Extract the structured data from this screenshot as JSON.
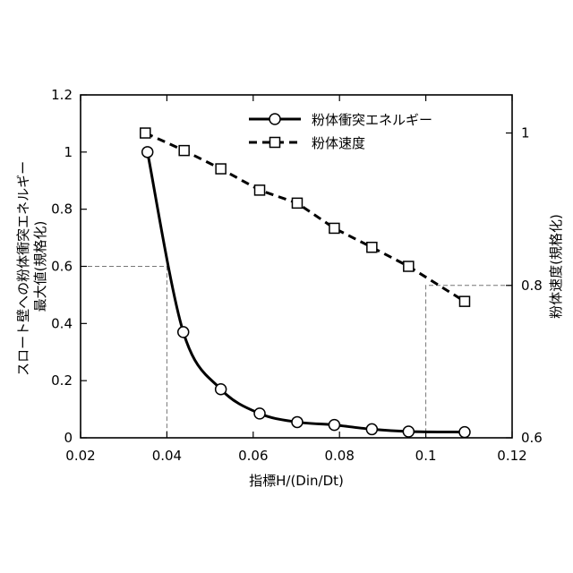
{
  "chart_data": {
    "type": "line",
    "xlabel": "指標H/(Din/Dt)",
    "ylabel_left_lines": [
      "スロート壁への粉体衝突エネルギー",
      "最大値(規格化)"
    ],
    "ylabel_right": "粉体速度(規格化)",
    "xlim": [
      0.02,
      0.12
    ],
    "ylim_left": [
      0,
      1.2
    ],
    "ylim_right": [
      0.6,
      1.05
    ],
    "x_ticks": [
      "0.02",
      "0.04",
      "0.06",
      "0.08",
      "0.1",
      "0.12"
    ],
    "y_ticks_left": [
      "0",
      "0.2",
      "0.4",
      "0.6",
      "0.8",
      "1",
      "1.2"
    ],
    "y_ticks_right": [
      "0.6",
      "0.8",
      "1"
    ],
    "grid": false,
    "legend_position": "top-right",
    "series": [
      {
        "name": "粉体衝突エネルギー",
        "axis": "left",
        "style": "solid",
        "marker": "circle",
        "x": [
          0.0355,
          0.0438,
          0.0525,
          0.0615,
          0.0702,
          0.0788,
          0.0875,
          0.096,
          0.109
        ],
        "y": [
          1.0,
          0.37,
          0.17,
          0.085,
          0.055,
          0.045,
          0.03,
          0.022,
          0.02
        ]
      },
      {
        "name": "粉体速度",
        "axis": "right",
        "style": "dashed",
        "marker": "square",
        "x": [
          0.035,
          0.044,
          0.0525,
          0.0615,
          0.0702,
          0.0788,
          0.0875,
          0.096,
          0.109
        ],
        "y": [
          1.0,
          0.977,
          0.953,
          0.925,
          0.908,
          0.875,
          0.85,
          0.825,
          0.779
        ]
      }
    ],
    "reference_lines": [
      {
        "axis": "left",
        "x": 0.04,
        "y": 0.6
      },
      {
        "axis": "right",
        "x": 0.1,
        "y": 0.8
      }
    ]
  }
}
